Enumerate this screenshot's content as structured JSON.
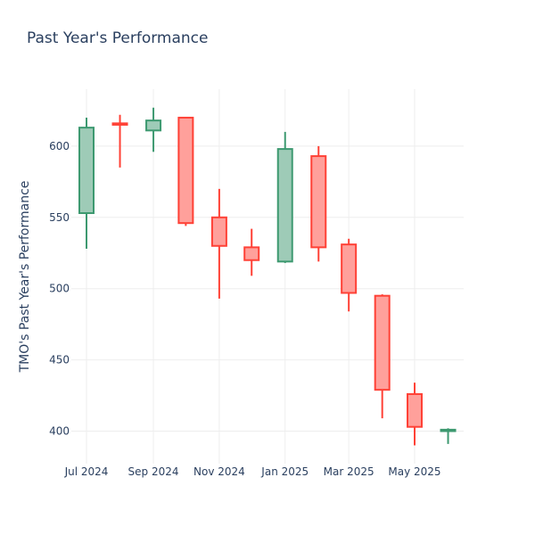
{
  "chart_data": {
    "type": "candlestick",
    "title": "Past Year's Performance",
    "xlabel": "",
    "ylabel": "TMO's Past Year's Performance",
    "ylim": [
      380,
      640
    ],
    "yticks": [
      400,
      450,
      500,
      550,
      600
    ],
    "grid": true,
    "legend": "none",
    "colors": {
      "increasing_line": "#3d9970",
      "increasing_fill": "#9ecbb7",
      "decreasing_line": "#ff4136",
      "decreasing_fill": "#ffa09b",
      "grid": "#eeeeee",
      "text": "#2a3f5f"
    },
    "x_ticks": [
      {
        "date": "2024-07-01",
        "label": "Jul 2024"
      },
      {
        "date": "2024-09-01",
        "label": "Sep 2024"
      },
      {
        "date": "2024-11-01",
        "label": "Nov 2024"
      },
      {
        "date": "2025-01-01",
        "label": "Jan 2025"
      },
      {
        "date": "2025-03-01",
        "label": "Mar 2025"
      },
      {
        "date": "2025-05-01",
        "label": "May 2025"
      }
    ],
    "candles": [
      {
        "date": "2024-07-01",
        "open": 553,
        "high": 620,
        "low": 528,
        "close": 613
      },
      {
        "date": "2024-08-01",
        "open": 616,
        "high": 622,
        "low": 585,
        "close": 615
      },
      {
        "date": "2024-09-01",
        "open": 611,
        "high": 627,
        "low": 596,
        "close": 618
      },
      {
        "date": "2024-10-01",
        "open": 620,
        "high": 620,
        "low": 544,
        "close": 546
      },
      {
        "date": "2024-11-01",
        "open": 550,
        "high": 570,
        "low": 493,
        "close": 530
      },
      {
        "date": "2024-12-01",
        "open": 529,
        "high": 542,
        "low": 509,
        "close": 520
      },
      {
        "date": "2025-01-01",
        "open": 519,
        "high": 610,
        "low": 518,
        "close": 598
      },
      {
        "date": "2025-02-01",
        "open": 593,
        "high": 600,
        "low": 519,
        "close": 529
      },
      {
        "date": "2025-03-01",
        "open": 531,
        "high": 535,
        "low": 484,
        "close": 497
      },
      {
        "date": "2025-04-01",
        "open": 495,
        "high": 496,
        "low": 409,
        "close": 429
      },
      {
        "date": "2025-05-01",
        "open": 426,
        "high": 434,
        "low": 390,
        "close": 403
      },
      {
        "date": "2025-06-01",
        "open": 400,
        "high": 402,
        "low": 391,
        "close": 401
      }
    ]
  }
}
